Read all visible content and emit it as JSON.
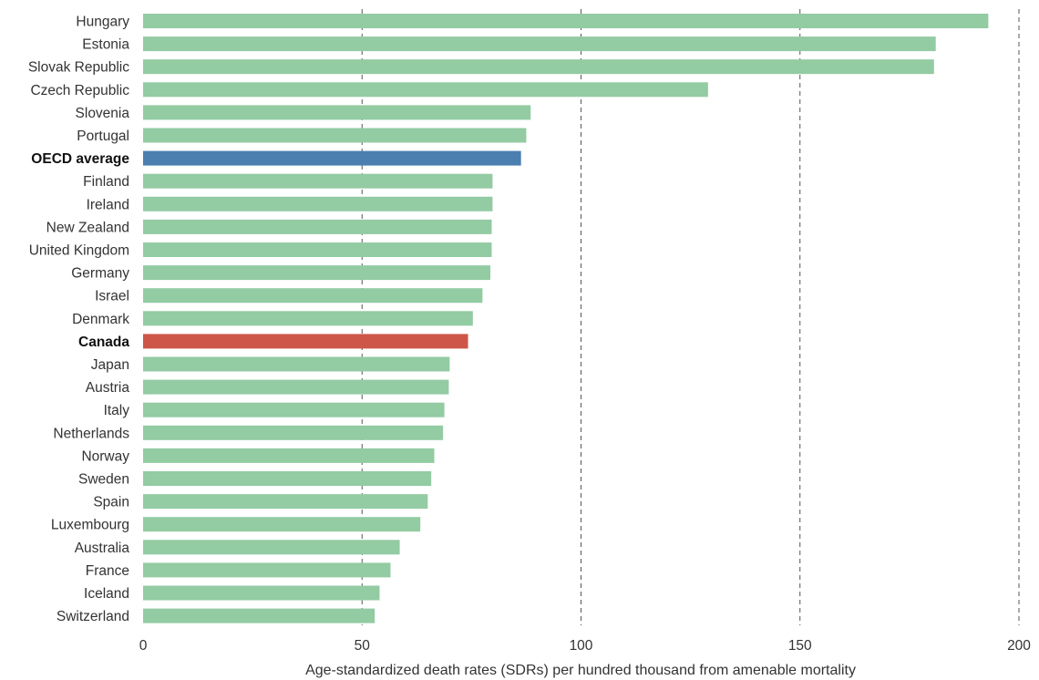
{
  "chart_data": {
    "type": "bar",
    "orientation": "horizontal",
    "title": "",
    "xlabel": "Age-standardized death rates (SDRs) per hundred thousand from amenable mortality",
    "ylabel": "",
    "xlim": [
      0,
      200
    ],
    "xticks": [
      0,
      50,
      100,
      150,
      200
    ],
    "grid": "vertical-dashed",
    "categories": [
      "Hungary",
      "Estonia",
      "Slovak Republic",
      "Czech Republic",
      "Slovenia",
      "Portugal",
      "OECD average",
      "Finland",
      "Ireland",
      "New Zealand",
      "United Kingdom",
      "Germany",
      "Israel",
      "Denmark",
      "Canada",
      "Japan",
      "Austria",
      "Italy",
      "Netherlands",
      "Norway",
      "Sweden",
      "Spain",
      "Luxembourg",
      "Australia",
      "France",
      "Iceland",
      "Switzerland"
    ],
    "values": [
      193.0,
      181.0,
      180.6,
      129.0,
      88.5,
      87.5,
      86.3,
      79.8,
      79.8,
      79.6,
      79.6,
      79.3,
      77.5,
      75.3,
      74.2,
      70.0,
      69.8,
      68.8,
      68.5,
      66.5,
      65.8,
      65.0,
      63.3,
      58.6,
      56.5,
      54.0,
      52.9
    ],
    "highlighted": [
      "OECD average",
      "Canada"
    ],
    "colors": {
      "default": "#93cba3",
      "OECD average": "#4a7fb0",
      "Canada": "#cd5648"
    }
  }
}
